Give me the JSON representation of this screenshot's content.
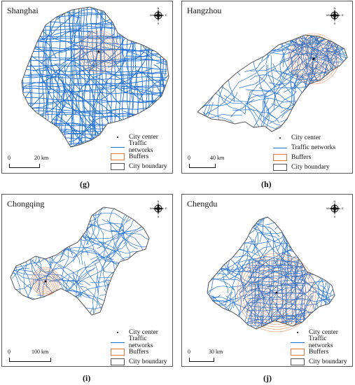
{
  "panels": [
    {
      "id": "g",
      "title": "Shanghai",
      "caption": "(g)",
      "scale": {
        "start": "0",
        "end": "20 km"
      },
      "legend": [
        "City center",
        "Traffic networks",
        "Buffers",
        "City boundary"
      ]
    },
    {
      "id": "h",
      "title": "Hangzhou",
      "caption": "(h)",
      "scale": {
        "start": "0",
        "end": "40 km"
      },
      "legend": [
        "City center",
        "Traffic networks",
        "Buffers",
        "City boundary"
      ]
    },
    {
      "id": "i",
      "title": "Chongqing",
      "caption": "(i)",
      "scale": {
        "start": "0",
        "end": "100 km"
      },
      "legend": [
        "City center",
        "Traffic networks",
        "Buffers",
        "City boundary"
      ]
    },
    {
      "id": "j",
      "title": "Chengdu",
      "caption": "(j)",
      "scale": {
        "start": "0",
        "end": "30 km"
      },
      "legend": [
        "City center",
        "Traffic networks",
        "Buffers",
        "City boundary"
      ]
    }
  ],
  "compass_letters": {
    "n": "N",
    "s": "S",
    "e": "E",
    "w": "W"
  },
  "colors": {
    "traffic": "#1f6fd6",
    "buffer": "#e8743c",
    "boundary": "#555555",
    "center": "#000000"
  }
}
